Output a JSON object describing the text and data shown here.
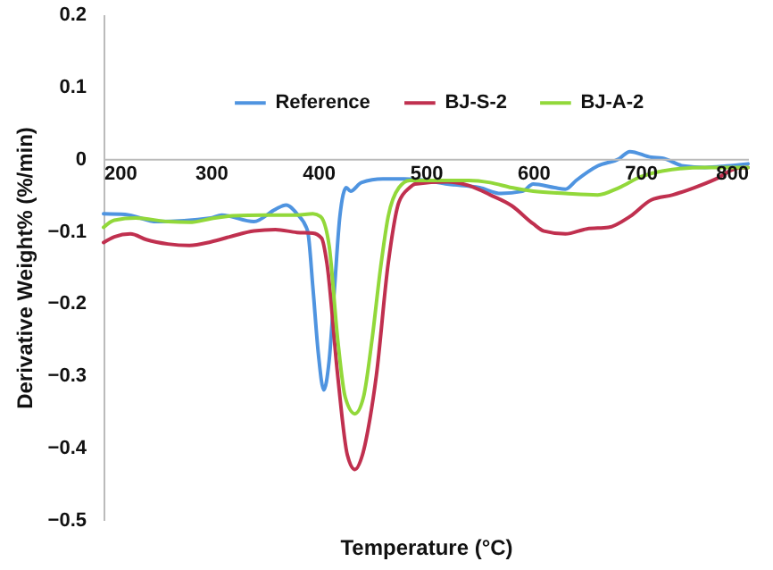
{
  "chart_data": {
    "type": "line",
    "xlabel": "Temperature (°C)",
    "ylabel": "Derivative Weight% (%/min)",
    "xlim": [
      200,
      800
    ],
    "xticks": [
      200,
      300,
      400,
      500,
      600,
      700,
      800
    ],
    "ylim": [
      -0.5,
      0.2
    ],
    "yticks": [
      -0.5,
      -0.4,
      -0.3,
      -0.2,
      -0.1,
      0,
      0.1,
      0.2
    ],
    "grid": false,
    "legend": "top",
    "line_style": "solid",
    "series": [
      {
        "name": "Reference",
        "color": "#4f94e0",
        "x": [
          200,
          220,
          250,
          300,
          310,
          340,
          360,
          370,
          380,
          390,
          395,
          400,
          405,
          410,
          415,
          420,
          426,
          430,
          440,
          460,
          480,
          500,
          520,
          550,
          570,
          590,
          600,
          620,
          630,
          640,
          660,
          680,
          690,
          710,
          720,
          740,
          760,
          780,
          800
        ],
        "values": [
          -0.076,
          -0.077,
          -0.087,
          -0.082,
          -0.078,
          -0.087,
          -0.07,
          -0.064,
          -0.076,
          -0.1,
          -0.18,
          -0.27,
          -0.32,
          -0.28,
          -0.18,
          -0.08,
          -0.04,
          -0.045,
          -0.033,
          -0.028,
          -0.028,
          -0.03,
          -0.035,
          -0.04,
          -0.048,
          -0.045,
          -0.035,
          -0.04,
          -0.042,
          -0.03,
          -0.01,
          0.0,
          0.01,
          0.002,
          0.001,
          -0.01,
          -0.012,
          -0.01,
          -0.007
        ]
      },
      {
        "name": "BJ-S-2",
        "color": "#c0304f",
        "x": [
          200,
          210,
          225,
          240,
          260,
          280,
          300,
          320,
          340,
          360,
          380,
          395,
          403,
          408,
          418,
          427,
          434,
          441,
          448,
          454,
          465,
          475,
          485,
          490,
          520,
          540,
          560,
          580,
          600,
          610,
          630,
          650,
          670,
          690,
          710,
          730,
          750,
          770,
          790,
          800
        ],
        "values": [
          -0.116,
          -0.108,
          -0.104,
          -0.112,
          -0.118,
          -0.12,
          -0.115,
          -0.107,
          -0.1,
          -0.098,
          -0.102,
          -0.103,
          -0.11,
          -0.145,
          -0.3,
          -0.41,
          -0.43,
          -0.41,
          -0.36,
          -0.3,
          -0.145,
          -0.06,
          -0.04,
          -0.035,
          -0.032,
          -0.037,
          -0.05,
          -0.065,
          -0.09,
          -0.1,
          -0.104,
          -0.097,
          -0.095,
          -0.08,
          -0.057,
          -0.05,
          -0.04,
          -0.028,
          -0.013,
          -0.012
        ]
      },
      {
        "name": "BJ-A-2",
        "color": "#92d83a",
        "x": [
          200,
          210,
          230,
          260,
          280,
          300,
          320,
          350,
          380,
          395,
          402,
          410,
          418,
          425,
          434,
          442,
          450,
          458,
          465,
          475,
          485,
          500,
          540,
          560,
          580,
          600,
          630,
          660,
          680,
          700,
          720,
          760,
          800
        ],
        "values": [
          -0.095,
          -0.085,
          -0.082,
          -0.087,
          -0.088,
          -0.083,
          -0.079,
          -0.078,
          -0.078,
          -0.076,
          -0.08,
          -0.12,
          -0.25,
          -0.33,
          -0.353,
          -0.33,
          -0.25,
          -0.15,
          -0.08,
          -0.04,
          -0.03,
          -0.03,
          -0.03,
          -0.033,
          -0.04,
          -0.045,
          -0.048,
          -0.05,
          -0.04,
          -0.025,
          -0.017,
          -0.012,
          -0.012
        ]
      }
    ]
  }
}
